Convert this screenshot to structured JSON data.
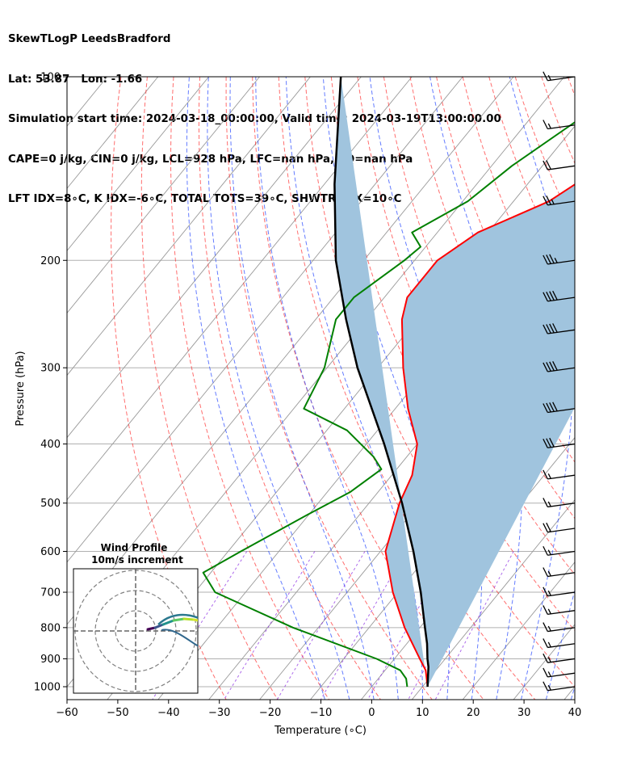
{
  "header": {
    "line1": "SkewTLogP LeedsBradford",
    "line2": "Lat: 53.87   Lon: -1.66",
    "line3": "Simulation start time: 2024-03-18_00:00:00, Valid time: 2024-03-19T13:00:00.00",
    "line4": "CAPE=0 j/kg, CIN=0 j/kg, LCL=928 hPa, LFC=nan hPa, EQ=nan hPa",
    "line5": "LFT IDX=8∘C, K IDX=-6∘C, TOTAL TOTS=39∘C, SHWTR_IDX=10∘C"
  },
  "axes": {
    "xlabel": "Temperature (∘C)",
    "ylabel": "Pressure (hPa)",
    "x_ticks": [
      "−60",
      "−50",
      "−40",
      "−30",
      "−20",
      "−10",
      "0",
      "10",
      "20",
      "30",
      "40"
    ],
    "y_ticks": [
      "100",
      "200",
      "300",
      "400",
      "500",
      "600",
      "700",
      "800",
      "900",
      "1000"
    ]
  },
  "inset": {
    "title": "Wind Profile",
    "subtitle": "10m/s increment"
  },
  "colors": {
    "temperature": "#ff0000",
    "dewpoint": "#008000",
    "parcel": "#000000",
    "cape_fill": "#a0c4de",
    "dry_adiabat": "#ff3030",
    "moist_adiabat": "#3050ff",
    "mixing_ratio": "#8a2be2",
    "isotherm": "#999999"
  },
  "chart_data": {
    "type": "line",
    "title": "SkewTLogP LeedsBradford",
    "xlabel": "Temperature (∘C)",
    "ylabel": "Pressure (hPa)",
    "xlim": [
      -60,
      40
    ],
    "ylim": [
      1050,
      100
    ],
    "yscale": "log",
    "skew": true,
    "grid": true,
    "series": [
      {
        "name": "Temperature",
        "points": [
          [
            100,
            -23.6
          ],
          [
            110,
            -30.5
          ],
          [
            120,
            -34.5
          ],
          [
            140,
            -38.0
          ],
          [
            160,
            -43.0
          ],
          [
            180,
            -52.0
          ],
          [
            200,
            -55.5
          ],
          [
            230,
            -55.5
          ],
          [
            250,
            -53.0
          ],
          [
            300,
            -45.0
          ],
          [
            350,
            -37.5
          ],
          [
            400,
            -30.0
          ],
          [
            450,
            -26.0
          ],
          [
            500,
            -24.0
          ],
          [
            600,
            -19.0
          ],
          [
            700,
            -11.0
          ],
          [
            800,
            -3.0
          ],
          [
            900,
            5.0
          ],
          [
            940,
            8.0
          ],
          [
            1000,
            11.0
          ]
        ]
      },
      {
        "name": "Dewpoint",
        "points": [
          [
            100,
            -45.0
          ],
          [
            140,
            -56.0
          ],
          [
            160,
            -59.0
          ],
          [
            180,
            -65.0
          ],
          [
            190,
            -61.0
          ],
          [
            200,
            -62.0
          ],
          [
            230,
            -66.0
          ],
          [
            250,
            -66.0
          ],
          [
            300,
            -60.5
          ],
          [
            350,
            -58.0
          ],
          [
            380,
            -46.0
          ],
          [
            420,
            -36.5
          ],
          [
            440,
            -33.0
          ],
          [
            480,
            -35.5
          ],
          [
            520,
            -40.0
          ],
          [
            600,
            -47.5
          ],
          [
            650,
            -51.5
          ],
          [
            700,
            -46.0
          ],
          [
            800,
            -25.0
          ],
          [
            900,
            -3.5
          ],
          [
            940,
            3.0
          ],
          [
            970,
            5.5
          ],
          [
            1000,
            7.0
          ]
        ]
      },
      {
        "name": "Parcel",
        "points": [
          [
            1000,
            11.0
          ],
          [
            928,
            8.0
          ],
          [
            900,
            6.5
          ],
          [
            850,
            4.0
          ],
          [
            800,
            1.0
          ],
          [
            700,
            -5.5
          ],
          [
            600,
            -13.5
          ],
          [
            500,
            -23.5
          ],
          [
            400,
            -36.5
          ],
          [
            300,
            -54.0
          ],
          [
            250,
            -64.0
          ],
          [
            200,
            -75.5
          ],
          [
            150,
            -88.0
          ],
          [
            100,
            -104.0
          ]
        ]
      }
    ],
    "wind_barbs": [
      {
        "p": 100,
        "knots": 15
      },
      {
        "p": 120,
        "knots": 15
      },
      {
        "p": 140,
        "knots": 20
      },
      {
        "p": 160,
        "knots": 25
      },
      {
        "p": 200,
        "knots": 35
      },
      {
        "p": 230,
        "knots": 40
      },
      {
        "p": 260,
        "knots": 40
      },
      {
        "p": 300,
        "knots": 40
      },
      {
        "p": 350,
        "knots": 40
      },
      {
        "p": 400,
        "knots": 30
      },
      {
        "p": 450,
        "knots": 15
      },
      {
        "p": 500,
        "knots": 15
      },
      {
        "p": 550,
        "knots": 20
      },
      {
        "p": 600,
        "knots": 15
      },
      {
        "p": 650,
        "knots": 15
      },
      {
        "p": 700,
        "knots": 15
      },
      {
        "p": 750,
        "knots": 15
      },
      {
        "p": 800,
        "knots": 15
      },
      {
        "p": 850,
        "knots": 15
      },
      {
        "p": 900,
        "knots": 15
      },
      {
        "p": 950,
        "knots": 15
      },
      {
        "p": 1000,
        "knots": 15
      }
    ]
  }
}
